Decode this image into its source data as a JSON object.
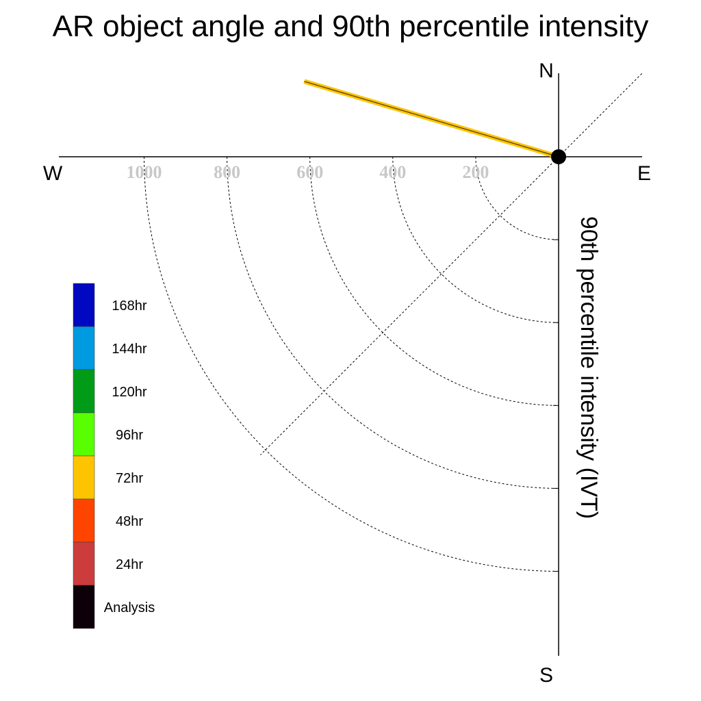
{
  "title": "AR object angle and 90th percentile intensity",
  "compass": {
    "north": "N",
    "south": "S",
    "east": "E",
    "west": "W"
  },
  "chart_data": {
    "type": "polar-vector",
    "title": "AR object angle and 90th percentile intensity",
    "ylabel": "90th percentile intensity (IVT)",
    "radial_ticks": [
      200,
      400,
      600,
      800,
      1000
    ],
    "radial_tick_labels": [
      "200",
      "400",
      "600",
      "800",
      "1000"
    ],
    "rmax": 1200,
    "series": [
      {
        "name": "72hr",
        "color": "#ffc400",
        "angle_deg": 163.5,
        "intensity": 640
      }
    ],
    "legend": {
      "placement": "left",
      "entries": [
        {
          "label": "168hr",
          "color": "#0008c2"
        },
        {
          "label": "144hr",
          "color": "#009ae0"
        },
        {
          "label": "120hr",
          "color": "#009c18"
        },
        {
          "label": "96hr",
          "color": "#57ff00"
        },
        {
          "label": "72hr",
          "color": "#ffc400"
        },
        {
          "label": "48hr",
          "color": "#ff4400"
        },
        {
          "label": "24hr",
          "color": "#cd3c3c"
        },
        {
          "label": "Analysis",
          "color": "#0d0008"
        }
      ]
    }
  }
}
